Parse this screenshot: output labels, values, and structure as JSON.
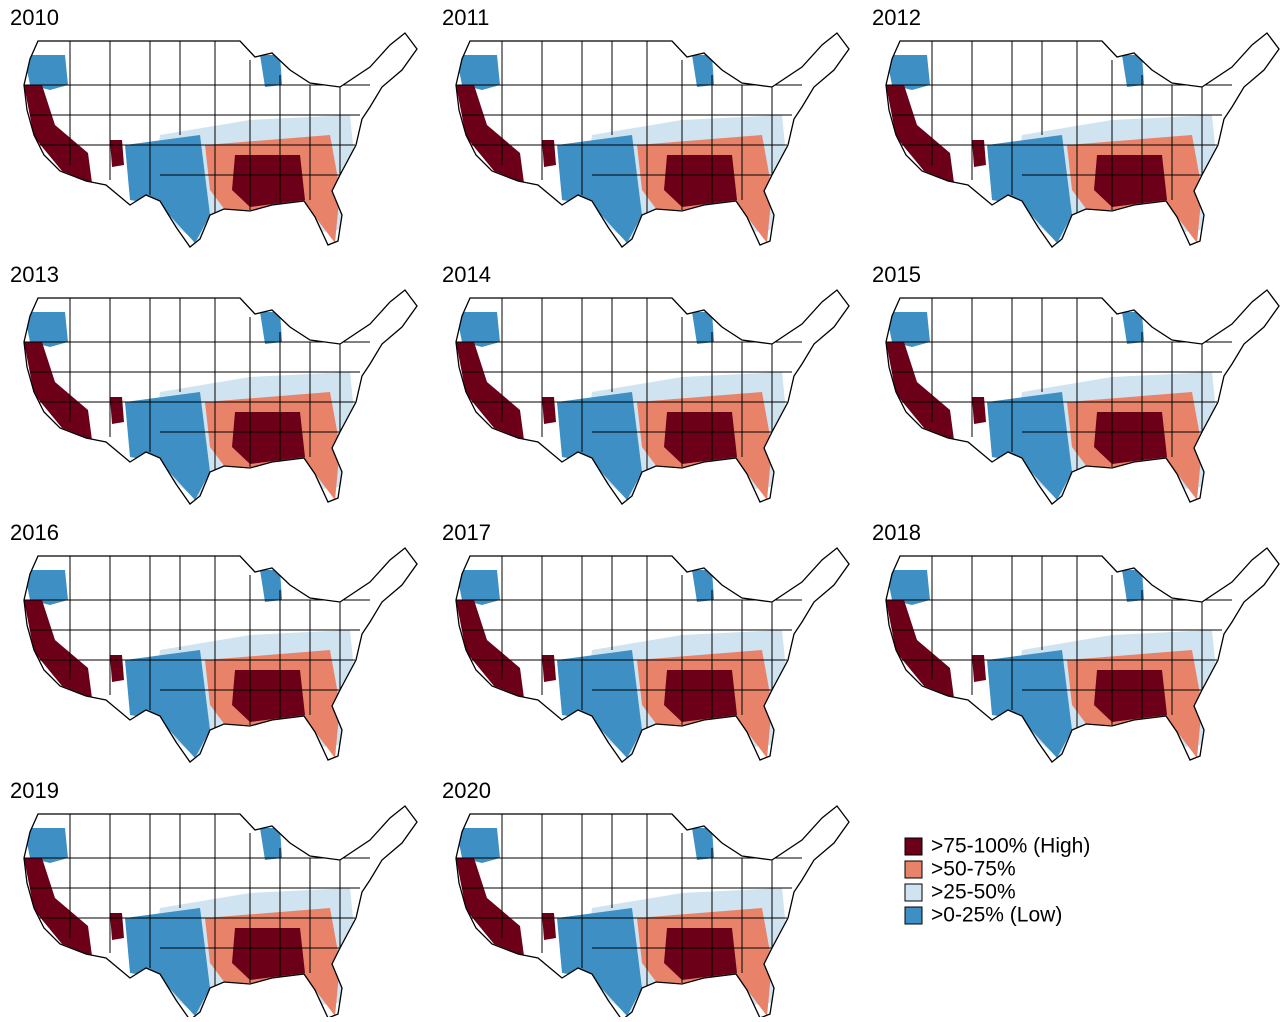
{
  "panels": [
    {
      "year": "2010"
    },
    {
      "year": "2011"
    },
    {
      "year": "2012"
    },
    {
      "year": "2013"
    },
    {
      "year": "2014"
    },
    {
      "year": "2015"
    },
    {
      "year": "2016"
    },
    {
      "year": "2017"
    },
    {
      "year": "2018"
    },
    {
      "year": "2019"
    },
    {
      "year": "2020"
    }
  ],
  "legend": [
    {
      "label": ">75-100% (High)",
      "color": "#6b0018"
    },
    {
      "label": ">50-75%",
      "color": "#e8836a"
    },
    {
      "label": ">25-50%",
      "color": "#cfe3f0"
    },
    {
      "label": ">0-25% (Low)",
      "color": "#3d8fc4"
    }
  ]
}
